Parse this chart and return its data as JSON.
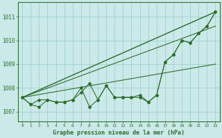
{
  "xlabel": "Graphe pression niveau de la mer (hPa)",
  "background_color": "#cbe9e9",
  "plot_bg_color": "#cbe9e9",
  "grid_color": "#9ecfcf",
  "line_color": "#2d6e2d",
  "x_ticks": [
    0,
    1,
    2,
    3,
    4,
    5,
    6,
    7,
    8,
    9,
    10,
    11,
    12,
    13,
    14,
    15,
    16,
    17,
    18,
    19,
    20,
    21,
    22,
    23
  ],
  "ylim": [
    1006.6,
    1011.6
  ],
  "yticks": [
    1007,
    1008,
    1009,
    1010,
    1011
  ],
  "trend_lines": [
    [
      [
        0,
        1007.6
      ],
      [
        23,
        1011.2
      ]
    ],
    [
      [
        0,
        1007.6
      ],
      [
        23,
        1011.2
      ]
    ],
    [
      [
        0,
        1007.6
      ],
      [
        23,
        1010.6
      ]
    ],
    [
      [
        0,
        1007.6
      ],
      [
        23,
        1009.0
      ]
    ]
  ],
  "data_series": [
    1007.6,
    1007.3,
    1007.2,
    1007.5,
    1007.4,
    1007.4,
    1007.5,
    1008.0,
    1007.2,
    1007.5,
    1008.1,
    1007.6,
    1007.6,
    1007.6,
    1007.6,
    1007.4,
    1007.7,
    1009.1,
    1009.4,
    1010.0,
    1009.9,
    1010.3,
    1010.6,
    1011.2
  ],
  "data_series2": [
    1007.6,
    1007.3,
    1007.5,
    1007.5,
    1007.4,
    1007.4,
    1007.5,
    1007.8,
    1008.2,
    1007.5,
    1008.1,
    1007.6,
    1007.6,
    1007.6,
    1007.7,
    1007.4,
    1007.7,
    1009.1,
    1009.4,
    1010.0,
    1009.9,
    1010.3,
    1010.6,
    1011.2
  ]
}
